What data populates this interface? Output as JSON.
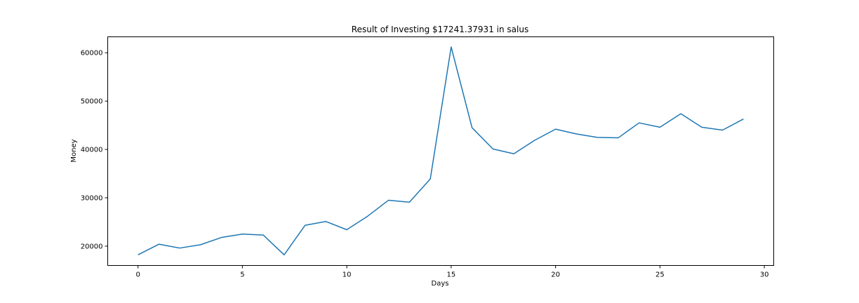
{
  "chart_data": {
    "type": "line",
    "title": "Result of Investing $17241.37931 in salus",
    "xlabel": "Days",
    "ylabel": "Money",
    "xlim": [
      -1.45,
      30.45
    ],
    "ylim": [
      16000,
      63300
    ],
    "xticks": [
      0,
      5,
      10,
      15,
      20,
      25,
      30
    ],
    "xtick_labels": [
      "0",
      "5",
      "10",
      "15",
      "20",
      "25",
      "30"
    ],
    "yticks": [
      20000,
      30000,
      40000,
      50000,
      60000
    ],
    "ytick_labels": [
      "20000",
      "30000",
      "40000",
      "50000",
      "60000"
    ],
    "grid": false,
    "legend": "none",
    "line_color": "#1f77b4",
    "series": [
      {
        "x": [
          0,
          1,
          2,
          3,
          4,
          5,
          6,
          7,
          8,
          9,
          10,
          11,
          12,
          13,
          14,
          15,
          16,
          17,
          18,
          19,
          20,
          21,
          22,
          23,
          24,
          25,
          26,
          27,
          28,
          29
        ],
        "values": [
          18200,
          20400,
          19600,
          20300,
          21800,
          22500,
          22300,
          18200,
          24300,
          25100,
          23400,
          26200,
          29500,
          29100,
          33900,
          61200,
          44500,
          40100,
          39100,
          41900,
          44200,
          43200,
          42500,
          42400,
          45500,
          44600,
          47400,
          44600,
          44000,
          46300
        ]
      }
    ]
  }
}
